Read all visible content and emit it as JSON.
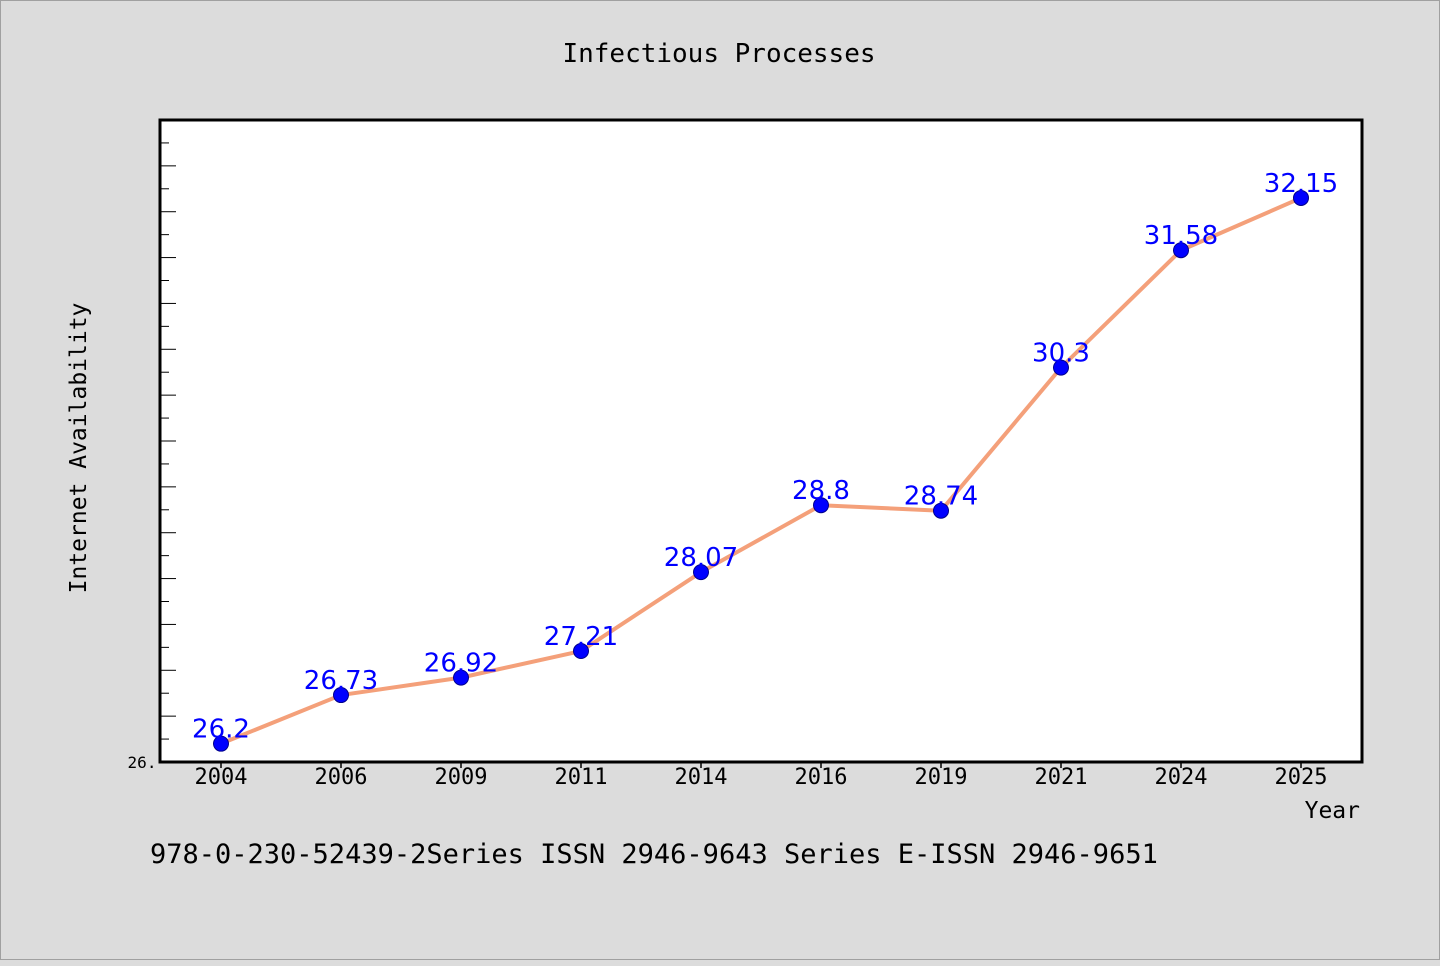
{
  "chart_data": {
    "type": "line",
    "title": "Infectious Processes",
    "xlabel": "Year",
    "ylabel": "Internet Availability",
    "categories": [
      "2004",
      "2006",
      "2009",
      "2011",
      "2014",
      "2016",
      "2019",
      "2021",
      "2024",
      "2025"
    ],
    "series": [
      {
        "values": [
          26.2,
          26.73,
          26.92,
          27.21,
          28.07,
          28.8,
          28.74,
          30.3,
          31.58,
          32.15
        ],
        "labels": [
          "26.2",
          "26.73",
          "26.92",
          "27.21",
          "28.07",
          "28.8",
          "28.74",
          "30.3",
          "31.58",
          "32.15"
        ],
        "line_color": "#f4a07a",
        "marker_color": "#0000ff",
        "label_color": "#0000ff"
      }
    ],
    "ylim": [
      26.0,
      33.0
    ],
    "ytick_label": "26.",
    "grid": false,
    "legend": "none"
  },
  "footer": {
    "text": "978-0-230-52439-2Series ISSN 2946-9643 Series E-ISSN 2946-9651"
  }
}
